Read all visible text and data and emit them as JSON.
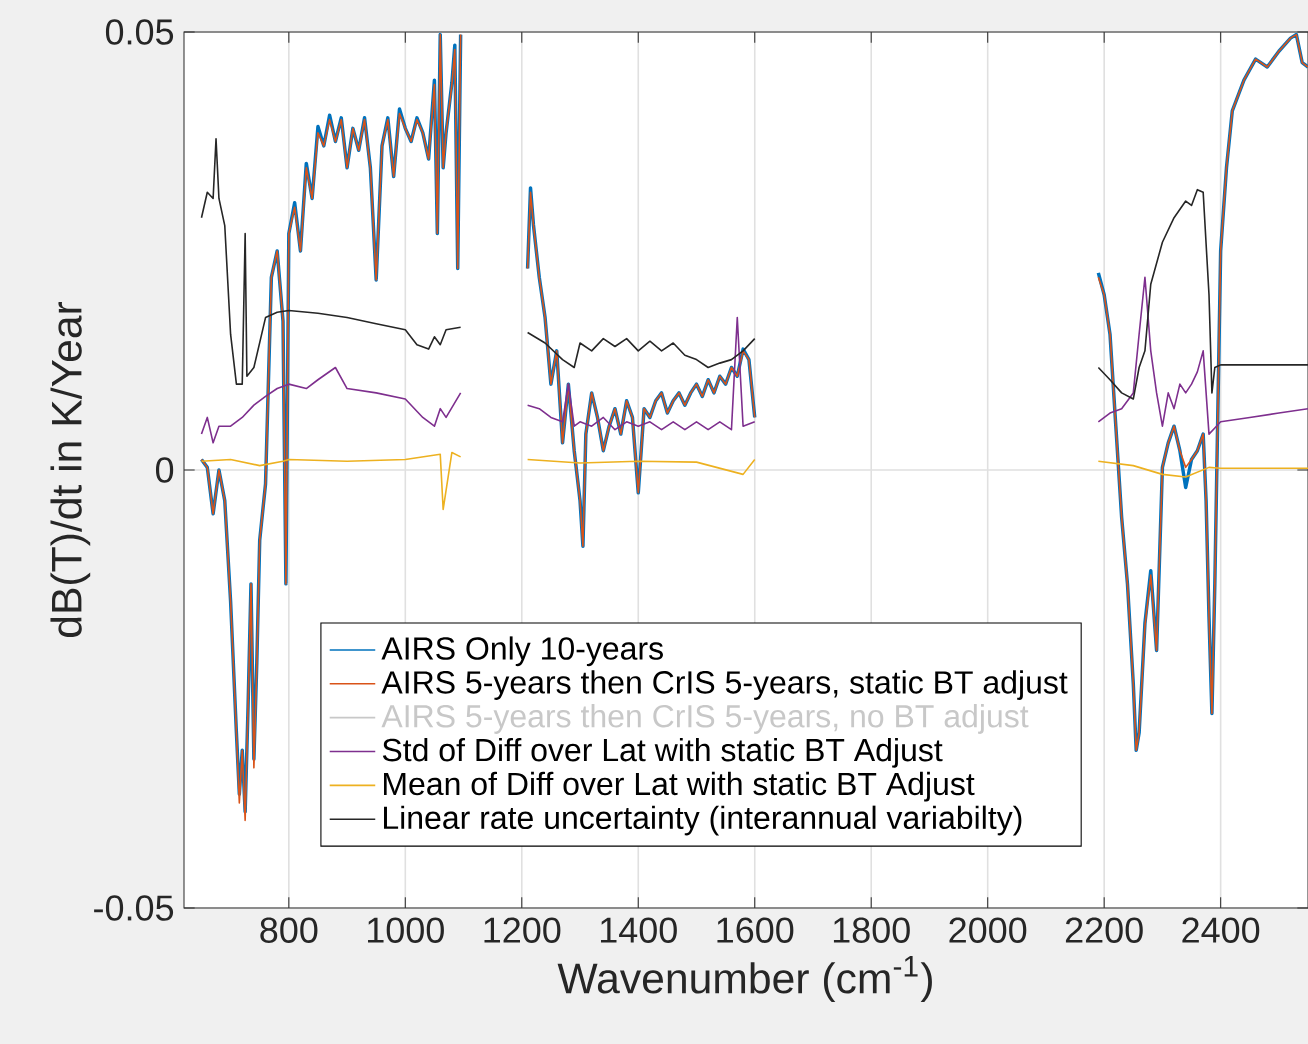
{
  "chart_data": {
    "type": "line",
    "xlabel": "Wavenumber (cm$^{-1}$)",
    "ylabel": "dB(T)/dt in K/Year",
    "xlim": [
      620,
      2550
    ],
    "ylim": [
      -0.05,
      0.05
    ],
    "xticks": [
      800,
      1000,
      1200,
      1400,
      1600,
      1800,
      2000,
      2200,
      2400
    ],
    "yticks": [
      -0.05,
      0,
      0.05
    ],
    "grid": true,
    "legend": "bottom",
    "series": [
      {
        "name": "AIRS Only 10-years",
        "color": "#0072bd",
        "x": [
          650,
          660,
          670,
          680,
          690,
          700,
          710,
          715,
          720,
          725,
          730,
          735,
          740,
          745,
          750,
          760,
          770,
          780,
          790,
          795,
          800,
          810,
          820,
          830,
          840,
          850,
          860,
          870,
          880,
          890,
          900,
          910,
          920,
          930,
          940,
          950,
          960,
          970,
          980,
          990,
          1000,
          1010,
          1020,
          1030,
          1040,
          1050,
          1055,
          1060,
          1065,
          1070,
          1080,
          1085,
          1090,
          1095,
          1150,
          1210,
          1215,
          1220,
          1230,
          1240,
          1250,
          1260,
          1270,
          1280,
          1290,
          1300,
          1305,
          1310,
          1320,
          1330,
          1340,
          1350,
          1360,
          1370,
          1380,
          1390,
          1400,
          1410,
          1420,
          1430,
          1440,
          1450,
          1460,
          1470,
          1480,
          1490,
          1500,
          1510,
          1520,
          1530,
          1540,
          1550,
          1560,
          1570,
          1580,
          1590,
          1600,
          1900,
          2190,
          2200,
          2210,
          2220,
          2230,
          2240,
          2250,
          2255,
          2260,
          2270,
          2280,
          2290,
          2300,
          2310,
          2320,
          2330,
          2340,
          2350,
          2360,
          2370,
          2375,
          2380,
          2385,
          2390,
          2395,
          2400,
          2410,
          2420,
          2440,
          2460,
          2480,
          2500,
          2520,
          2530,
          2540,
          2550
        ],
        "values": [
          0.0012,
          0.0003,
          -0.005,
          0,
          -0.0035,
          -0.015,
          -0.03,
          -0.037,
          -0.032,
          -0.039,
          -0.027,
          -0.013,
          -0.033,
          -0.022,
          -0.008,
          -0.0016,
          0.022,
          0.025,
          0.017,
          -0.013,
          0.027,
          0.0305,
          0.025,
          0.035,
          0.031,
          0.0392,
          0.037,
          0.0405,
          0.0375,
          0.0402,
          0.0345,
          0.039,
          0.0365,
          0.0402,
          0.0345,
          0.0217,
          0.037,
          0.0402,
          0.0335,
          0.0412,
          0.039,
          0.0375,
          0.0402,
          0.0385,
          0.0355,
          0.0445,
          0.027,
          0.0497,
          0.0345,
          0.0385,
          0.0442,
          0.0485,
          0.023,
          0.0497,
          null,
          0.023,
          0.0322,
          0.028,
          0.022,
          0.0174,
          0.0098,
          0.0136,
          0.0031,
          0.0098,
          0.0022,
          -0.0035,
          -0.0087,
          0.0041,
          0.0088,
          0.006,
          0.0022,
          0.005,
          0.007,
          0.0041,
          0.0079,
          0.006,
          -0.0026,
          0.007,
          0.006,
          0.0079,
          0.0088,
          0.0065,
          0.0079,
          0.0088,
          0.0074,
          0.0088,
          0.0098,
          0.0084,
          0.0103,
          0.0088,
          0.0107,
          0.0098,
          0.0117,
          0.0107,
          0.0138,
          0.0126,
          0.006,
          null,
          0.0225,
          0.02,
          0.0155,
          0.005,
          -0.0054,
          -0.013,
          -0.0244,
          -0.032,
          -0.03,
          -0.0175,
          -0.0115,
          -0.0206,
          0.0003,
          0.0031,
          0.005,
          0.0022,
          -0.002,
          0.0012,
          0.0022,
          0.0041,
          -0.0035,
          -0.0168,
          -0.0278,
          -0.013,
          0.006,
          0.025,
          0.0345,
          0.041,
          0.0445,
          0.0469,
          0.046,
          0.0478,
          0.0493,
          0.0497,
          0.0465,
          0.046
        ]
      },
      {
        "name": "AIRS 5-years then CrIS 5-years, static BT adjust",
        "color": "#d95319",
        "x": [
          650,
          660,
          670,
          680,
          690,
          700,
          710,
          715,
          720,
          725,
          730,
          735,
          740,
          745,
          750,
          760,
          770,
          780,
          790,
          795,
          800,
          810,
          820,
          830,
          840,
          850,
          860,
          870,
          880,
          890,
          900,
          910,
          920,
          930,
          940,
          950,
          960,
          970,
          980,
          990,
          1000,
          1010,
          1020,
          1030,
          1040,
          1050,
          1055,
          1060,
          1065,
          1070,
          1080,
          1085,
          1090,
          1095,
          1150,
          1210,
          1215,
          1220,
          1230,
          1240,
          1250,
          1260,
          1270,
          1280,
          1290,
          1300,
          1305,
          1310,
          1320,
          1330,
          1340,
          1350,
          1360,
          1370,
          1380,
          1390,
          1400,
          1410,
          1420,
          1430,
          1440,
          1450,
          1460,
          1470,
          1480,
          1490,
          1500,
          1510,
          1520,
          1530,
          1540,
          1550,
          1560,
          1570,
          1580,
          1590,
          1600,
          1900,
          2190,
          2200,
          2210,
          2220,
          2230,
          2240,
          2250,
          2255,
          2260,
          2270,
          2280,
          2290,
          2300,
          2310,
          2320,
          2330,
          2340,
          2350,
          2360,
          2370,
          2375,
          2380,
          2385,
          2390,
          2395,
          2400,
          2410,
          2420,
          2440,
          2460,
          2480,
          2500,
          2520,
          2530,
          2540,
          2550
        ],
        "values": [
          0.0012,
          0.0003,
          -0.005,
          0,
          -0.0035,
          -0.015,
          -0.03,
          -0.038,
          -0.032,
          -0.04,
          -0.027,
          -0.013,
          -0.034,
          -0.0225,
          -0.008,
          -0.0016,
          0.022,
          0.025,
          0.017,
          -0.013,
          0.027,
          0.03,
          0.025,
          0.0345,
          0.031,
          0.0385,
          0.037,
          0.04,
          0.0375,
          0.04,
          0.0345,
          0.039,
          0.0365,
          0.04,
          0.0345,
          0.0217,
          0.037,
          0.04,
          0.0335,
          0.0407,
          0.039,
          0.0375,
          0.04,
          0.0385,
          0.0355,
          0.044,
          0.027,
          0.0497,
          0.0345,
          0.0385,
          0.044,
          0.048,
          0.023,
          0.0497,
          null,
          0.023,
          0.0317,
          0.028,
          0.022,
          0.0174,
          0.0098,
          0.0136,
          0.0031,
          0.0098,
          0.0022,
          -0.0035,
          -0.0087,
          0.0041,
          0.0088,
          0.006,
          0.0022,
          0.005,
          0.007,
          0.0041,
          0.0079,
          0.006,
          -0.0026,
          0.007,
          0.006,
          0.0079,
          0.0088,
          0.0065,
          0.0079,
          0.0088,
          0.0074,
          0.0088,
          0.0098,
          0.0084,
          0.0103,
          0.0088,
          0.0107,
          0.0098,
          0.0117,
          0.0107,
          0.0136,
          0.0126,
          0.006,
          null,
          0.022,
          0.02,
          0.0155,
          0.005,
          -0.0054,
          -0.013,
          -0.0244,
          -0.032,
          -0.03,
          -0.0178,
          -0.012,
          -0.0206,
          0.0003,
          0.0031,
          0.005,
          0.0022,
          0.0003,
          0.0012,
          0.0022,
          0.0041,
          -0.0035,
          -0.0168,
          -0.0278,
          -0.013,
          0.006,
          0.025,
          0.0345,
          0.041,
          0.0445,
          0.0469,
          0.046,
          0.0478,
          0.0493,
          0.0497,
          0.0465,
          0.046
        ]
      },
      {
        "name": "AIRS 5-years then CrIS 5-years, no BT adjust",
        "color": "#c8c8c8"
      },
      {
        "name": "Std of Diff over Lat with static BT Adjust",
        "color": "#7e2f8e",
        "x": [
          650,
          660,
          670,
          680,
          700,
          720,
          740,
          760,
          780,
          800,
          830,
          850,
          880,
          900,
          950,
          1000,
          1030,
          1050,
          1060,
          1070,
          1095,
          1150,
          1210,
          1230,
          1250,
          1270,
          1280,
          1290,
          1300,
          1320,
          1340,
          1360,
          1380,
          1400,
          1420,
          1440,
          1460,
          1480,
          1500,
          1520,
          1540,
          1560,
          1570,
          1580,
          1600,
          1900,
          2190,
          2210,
          2230,
          2250,
          2260,
          2270,
          2280,
          2290,
          2300,
          2310,
          2320,
          2330,
          2340,
          2350,
          2360,
          2370,
          2380,
          2390,
          2400,
          2450,
          2500,
          2550
        ],
        "values": [
          0.0041,
          0.006,
          0.0031,
          0.005,
          0.005,
          0.006,
          0.0074,
          0.0084,
          0.0093,
          0.0098,
          0.0093,
          0.0103,
          0.0117,
          0.0093,
          0.0088,
          0.0081,
          0.006,
          0.005,
          0.007,
          0.006,
          0.0088,
          null,
          0.0074,
          0.007,
          0.006,
          0.0055,
          0.0098,
          0.005,
          0.0055,
          0.005,
          0.006,
          0.0046,
          0.0055,
          0.005,
          0.0055,
          0.0046,
          0.0055,
          0.0046,
          0.0055,
          0.0046,
          0.0055,
          0.0046,
          0.0174,
          0.005,
          0.0055,
          null,
          0.0055,
          0.0065,
          0.007,
          0.0088,
          0.0155,
          0.022,
          0.0136,
          0.0088,
          0.005,
          0.0088,
          0.007,
          0.0098,
          0.0088,
          0.0098,
          0.0112,
          0.0136,
          0.0041,
          0.0048,
          0.0055,
          0.006,
          0.0065,
          0.007
        ]
      },
      {
        "name": "Mean of Diff over Lat with static BT Adjust",
        "color": "#edb120",
        "x": [
          650,
          700,
          750,
          790,
          800,
          900,
          1000,
          1060,
          1065,
          1080,
          1095,
          1150,
          1210,
          1300,
          1400,
          1500,
          1580,
          1600,
          1900,
          2190,
          2250,
          2300,
          2340,
          2380,
          2400,
          2550
        ],
        "values": [
          0.001,
          0.0012,
          0.0005,
          0.001,
          0.0012,
          0.001,
          0.0012,
          0.0018,
          -0.0045,
          0.002,
          0.0015,
          null,
          0.0012,
          0.0008,
          0.001,
          0.0009,
          -0.0005,
          0.0012,
          null,
          0.001,
          0.0005,
          -0.0005,
          -0.0008,
          0.0003,
          0.0002,
          0.0002
        ]
      },
      {
        "name": "Linear rate uncertainty (interannual variabilty)",
        "color": "#262626",
        "x": [
          650,
          660,
          670,
          675,
          680,
          690,
          700,
          710,
          720,
          725,
          728,
          740,
          760,
          780,
          800,
          850,
          900,
          950,
          1000,
          1020,
          1040,
          1050,
          1060,
          1070,
          1095,
          1150,
          1210,
          1240,
          1270,
          1290,
          1300,
          1320,
          1340,
          1360,
          1380,
          1400,
          1420,
          1440,
          1460,
          1480,
          1500,
          1520,
          1540,
          1560,
          1580,
          1600,
          1900,
          2190,
          2210,
          2230,
          2250,
          2260,
          2270,
          2280,
          2300,
          2320,
          2340,
          2350,
          2360,
          2370,
          2380,
          2385,
          2390,
          2400,
          2550
        ],
        "values": [
          0.0288,
          0.0317,
          0.031,
          0.0378,
          0.031,
          0.0279,
          0.0155,
          0.0098,
          0.0098,
          0.027,
          0.0107,
          0.0117,
          0.0174,
          0.018,
          0.0182,
          0.0179,
          0.0174,
          0.0167,
          0.016,
          0.0143,
          0.0138,
          0.0152,
          0.0143,
          0.016,
          0.0163,
          null,
          0.0157,
          0.0145,
          0.0126,
          0.0117,
          0.0145,
          0.0136,
          0.015,
          0.0141,
          0.015,
          0.0136,
          0.0147,
          0.0136,
          0.0145,
          0.0131,
          0.0126,
          0.0117,
          0.0122,
          0.0126,
          0.0136,
          0.015,
          null,
          0.0117,
          0.0103,
          0.0088,
          0.0081,
          0.0117,
          0.0136,
          0.0212,
          0.026,
          0.0288,
          0.0307,
          0.0302,
          0.032,
          0.0317,
          0.02,
          0.0088,
          0.0117,
          0.012,
          0.012
        ]
      }
    ]
  }
}
